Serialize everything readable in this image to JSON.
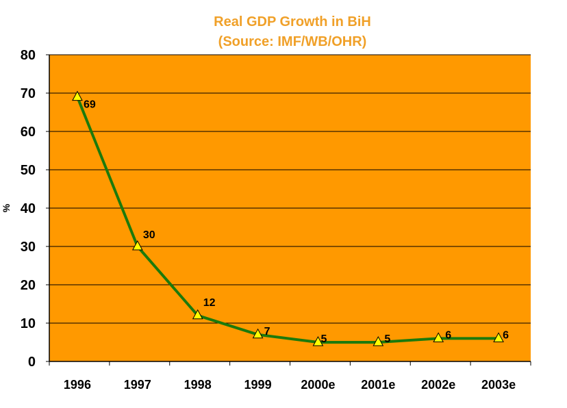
{
  "colors": {
    "title": "#f0a028",
    "plot_bg": "#ff9900",
    "line": "#1c7a0c",
    "marker": "#ffff00",
    "marker_stroke": "#000000",
    "grid": "#000000"
  },
  "chart_data": {
    "type": "line",
    "title_line1": "Real GDP Growth in BiH",
    "title_line2": "(Source: IMF/WB/OHR)",
    "xlabel": "",
    "ylabel": "%",
    "ylim": [
      0,
      80
    ],
    "yticks": [
      "0",
      "10",
      "20",
      "30",
      "40",
      "50",
      "60",
      "70",
      "80"
    ],
    "grid": "horizontal",
    "categories": [
      "1996",
      "1997",
      "1998",
      "1999",
      "2000e",
      "2001e",
      "2002e",
      "2003e"
    ],
    "values": [
      69,
      30,
      12,
      7,
      5,
      5,
      6,
      6
    ],
    "data_labels": [
      "69",
      "30",
      "12",
      "7",
      "5",
      "5",
      "6",
      "6"
    ]
  }
}
